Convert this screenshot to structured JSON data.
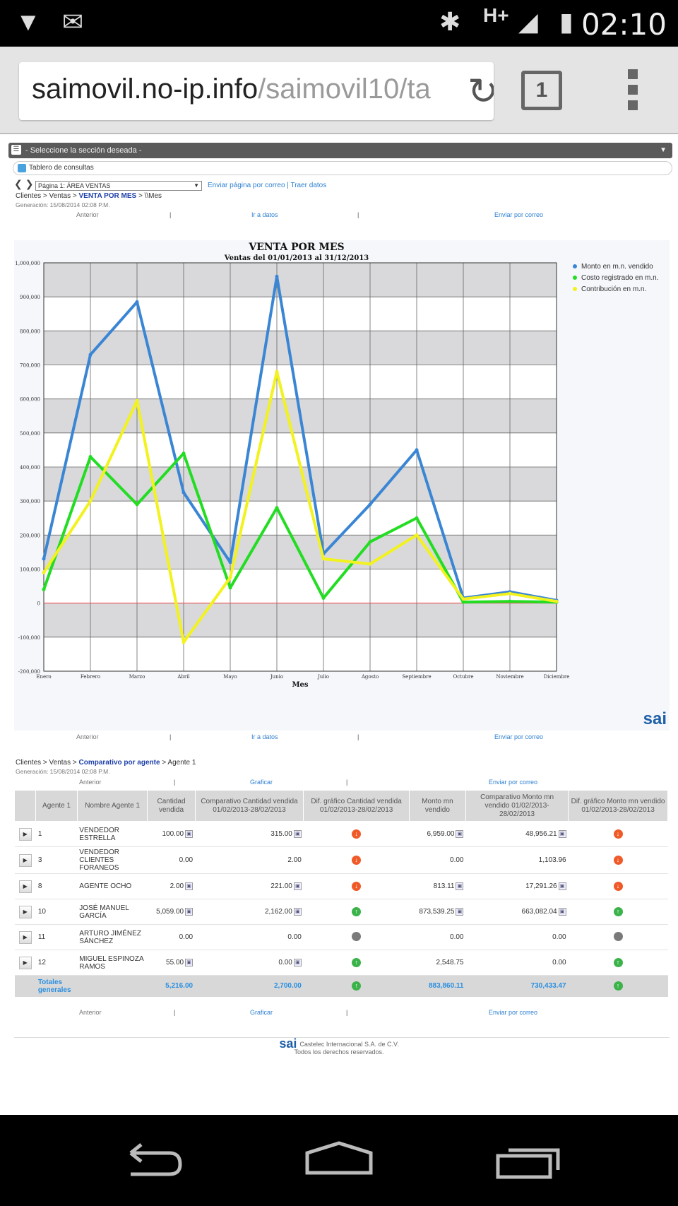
{
  "status_bar": {
    "clock": "02:10",
    "network": "H+",
    "icons": [
      "wifi-unknown-icon",
      "gmail-icon",
      "bluetooth-icon",
      "signal-icon",
      "battery-charging-icon"
    ]
  },
  "browser": {
    "url_host": "saimovil.no-ip.info",
    "url_path": "/saimovil10/ta",
    "tab_count": "1"
  },
  "nav": {
    "section_select": "- Seleccione la sección deseada -",
    "tablero": "Tablero de consultas",
    "page_select": "Página 1: ÁREA VENTAS",
    "links": "Enviar página por correo | Traer datos"
  },
  "report1": {
    "crumb_prefix": "Clientes > Ventas >",
    "crumb_bold": "VENTA POR MES",
    "crumb_suffix": "> \\\\Mes",
    "generated": "Generación: 15/08/2014 02:08 P.M.",
    "link_prev": "Anterior",
    "link_data": "Ir a datos",
    "link_mail": "Enviar por correo"
  },
  "chart_data": {
    "type": "line",
    "title": "VENTA POR MES",
    "subtitle": "Ventas del 01/01/2013 al 31/12/2013",
    "xlabel": "Mes",
    "ylabel": "",
    "ylim": [
      -200000,
      1000000
    ],
    "yticks": [
      "-200,000",
      "-100,000",
      "0",
      "100,000",
      "200,000",
      "300,000",
      "400,000",
      "500,000",
      "600,000",
      "700,000",
      "800,000",
      "900,000",
      "1,000,000"
    ],
    "categories": [
      "Enero",
      "Febrero",
      "Marzo",
      "Abril",
      "Mayo",
      "Junio",
      "Julio",
      "Agosto",
      "Septiembre",
      "Octubre",
      "Noviembre",
      "Diciembre"
    ],
    "legend_position": "top-right",
    "grid": true,
    "series": [
      {
        "name": "Monto en m.n. vendido",
        "color": "#3a86d4",
        "values": [
          130000,
          730000,
          885000,
          325000,
          120000,
          960000,
          145000,
          290000,
          450000,
          15000,
          33000,
          8000
        ]
      },
      {
        "name": "Costo registrado en m.n.",
        "color": "#22dd22",
        "values": [
          40000,
          430000,
          290000,
          440000,
          45000,
          280000,
          15000,
          180000,
          250000,
          3000,
          5000,
          3000
        ]
      },
      {
        "name": "Contribución en m.n.",
        "color": "#f2f21e",
        "values": [
          90000,
          300000,
          595000,
          -115000,
          75000,
          680000,
          130000,
          115000,
          200000,
          12000,
          28000,
          5000
        ]
      }
    ],
    "brand": "sai"
  },
  "report2": {
    "crumb_prefix": "Clientes > Ventas >",
    "crumb_bold": "Comparativo por agente",
    "crumb_suffix": "> Agente 1",
    "generated": "Generación: 15/08/2014 02:08 P.M.",
    "link_prev": "Anterior",
    "link_chart": "Graficar",
    "link_mail": "Enviar por correo",
    "columns": [
      "Agente 1",
      "Nombre Agente 1",
      "Cantidad vendida",
      "Comparativo Cantidad vendida 01/02/2013-28/02/2013",
      "Dif. gráfico Cantidad vendida 01/02/2013-28/02/2013",
      "Monto mn vendido",
      "Comparativo Monto mn vendido 01/02/2013-28/02/2013",
      "Dif. gráfico Monto mn vendido 01/02/2013-28/02/2013"
    ],
    "rows": [
      {
        "id": "1",
        "name": "VENDEDOR ESTRELLA",
        "qty": "100.00",
        "qty_cmp": "315.00",
        "qty_dir": "down",
        "amt": "6,959.00",
        "amt_cmp": "48,956.21",
        "amt_dir": "down",
        "qty_mag": true,
        "amt_mag": true
      },
      {
        "id": "3",
        "name": "VENDEDOR CLIENTES FORANEOS",
        "qty": "0.00",
        "qty_cmp": "2.00",
        "qty_dir": "down",
        "amt": "0.00",
        "amt_cmp": "1,103.96",
        "amt_dir": "down",
        "qty_mag": false,
        "amt_mag": false
      },
      {
        "id": "8",
        "name": "AGENTE OCHO",
        "qty": "2.00",
        "qty_cmp": "221.00",
        "qty_dir": "down",
        "amt": "813.11",
        "amt_cmp": "17,291.26",
        "amt_dir": "down",
        "qty_mag": true,
        "amt_mag": true
      },
      {
        "id": "10",
        "name": "JOSÉ MANUEL GARCÍA",
        "qty": "5,059.00",
        "qty_cmp": "2,162.00",
        "qty_dir": "up",
        "amt": "873,539.25",
        "amt_cmp": "663,082.04",
        "amt_dir": "up",
        "qty_mag": true,
        "amt_mag": true
      },
      {
        "id": "11",
        "name": "ARTURO JIMÉNEZ SÁNCHEZ",
        "qty": "0.00",
        "qty_cmp": "0.00",
        "qty_dir": "neutral",
        "amt": "0.00",
        "amt_cmp": "0.00",
        "amt_dir": "neutral",
        "qty_mag": false,
        "amt_mag": false
      },
      {
        "id": "12",
        "name": "MIGUEL ESPINOZA RAMOS",
        "qty": "55.00",
        "qty_cmp": "0.00",
        "qty_dir": "up",
        "amt": "2,548.75",
        "amt_cmp": "0.00",
        "amt_dir": "up",
        "qty_mag": true,
        "amt_mag": false
      }
    ],
    "totals": {
      "label": "Totales generales",
      "qty": "5,216.00",
      "qty_cmp": "2,700.00",
      "qty_dir": "up",
      "amt": "883,860.11",
      "amt_cmp": "730,433.47",
      "amt_dir": "up"
    }
  },
  "footer": {
    "brand": "sai",
    "company": "Castelec Internacional S.A. de C.V.",
    "rights": "Todos los derechos reservados."
  }
}
